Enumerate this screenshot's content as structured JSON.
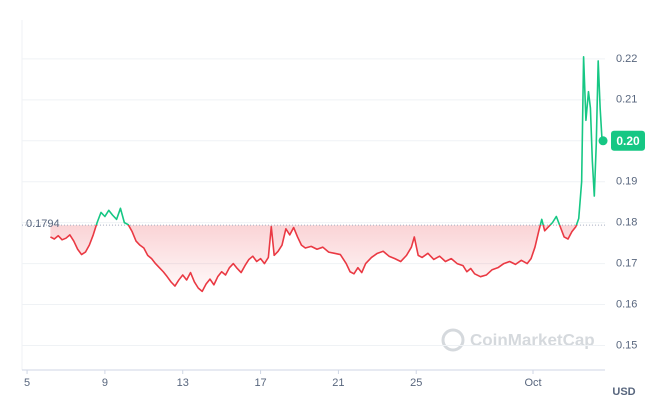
{
  "chart_data": {
    "type": "line",
    "x": [
      6.2,
      6.4,
      6.6,
      6.8,
      7.0,
      7.2,
      7.4,
      7.6,
      7.8,
      8.0,
      8.2,
      8.4,
      8.6,
      8.8,
      9.0,
      9.2,
      9.4,
      9.6,
      9.8,
      10.0,
      10.2,
      10.4,
      10.6,
      10.8,
      11.0,
      11.2,
      11.4,
      11.6,
      11.8,
      12.0,
      12.2,
      12.4,
      12.6,
      12.8,
      13.0,
      13.2,
      13.4,
      13.6,
      13.8,
      14.0,
      14.2,
      14.4,
      14.6,
      14.8,
      15.0,
      15.2,
      15.4,
      15.6,
      15.8,
      16.0,
      16.2,
      16.4,
      16.6,
      16.8,
      17.0,
      17.2,
      17.4,
      17.55,
      17.7,
      17.9,
      18.1,
      18.3,
      18.5,
      18.7,
      18.9,
      19.1,
      19.3,
      19.6,
      19.9,
      20.2,
      20.5,
      20.8,
      21.1,
      21.4,
      21.6,
      21.8,
      22.0,
      22.2,
      22.4,
      22.7,
      23.0,
      23.3,
      23.6,
      23.9,
      24.2,
      24.5,
      24.75,
      24.9,
      25.1,
      25.3,
      25.6,
      25.9,
      26.2,
      26.5,
      26.8,
      27.1,
      27.4,
      27.6,
      27.8,
      28.0,
      28.3,
      28.6,
      28.9,
      29.2,
      29.5,
      29.8,
      30.1,
      30.4,
      30.7,
      30.9,
      31.1,
      31.3,
      31.45,
      31.6,
      31.8,
      32.0,
      32.2,
      32.4,
      32.6,
      32.8,
      33.0,
      33.2,
      33.35,
      33.5,
      33.6,
      33.72,
      33.85,
      33.95,
      34.05,
      34.15,
      34.25,
      34.35,
      34.45,
      34.55,
      34.6
    ],
    "values": [
      0.1765,
      0.176,
      0.1768,
      0.1758,
      0.1762,
      0.177,
      0.1755,
      0.1735,
      0.1722,
      0.1728,
      0.1745,
      0.177,
      0.18,
      0.1825,
      0.1815,
      0.183,
      0.1818,
      0.1808,
      0.1835,
      0.18,
      0.1795,
      0.1778,
      0.1755,
      0.1745,
      0.1738,
      0.172,
      0.1712,
      0.17,
      0.169,
      0.168,
      0.1668,
      0.1655,
      0.1645,
      0.166,
      0.1672,
      0.166,
      0.1678,
      0.1655,
      0.164,
      0.1632,
      0.165,
      0.1662,
      0.1648,
      0.1668,
      0.168,
      0.1672,
      0.169,
      0.17,
      0.1688,
      0.1678,
      0.1695,
      0.171,
      0.1718,
      0.1705,
      0.1712,
      0.17,
      0.1715,
      0.179,
      0.172,
      0.173,
      0.1745,
      0.1785,
      0.177,
      0.1788,
      0.1765,
      0.1745,
      0.1738,
      0.1742,
      0.1735,
      0.174,
      0.1728,
      0.1725,
      0.1722,
      0.17,
      0.168,
      0.1675,
      0.169,
      0.1678,
      0.17,
      0.1715,
      0.1725,
      0.173,
      0.1718,
      0.1712,
      0.1705,
      0.172,
      0.174,
      0.1765,
      0.172,
      0.1715,
      0.1725,
      0.171,
      0.1718,
      0.1705,
      0.1712,
      0.17,
      0.1695,
      0.168,
      0.1688,
      0.1675,
      0.1668,
      0.1672,
      0.1685,
      0.169,
      0.17,
      0.1705,
      0.1698,
      0.1708,
      0.17,
      0.1712,
      0.174,
      0.178,
      0.1808,
      0.178,
      0.179,
      0.18,
      0.1815,
      0.179,
      0.1765,
      0.176,
      0.1778,
      0.179,
      0.181,
      0.19,
      0.2205,
      0.205,
      0.212,
      0.208,
      0.195,
      0.1865,
      0.199,
      0.2195,
      0.208,
      0.2,
      0.2
    ],
    "xlim": [
      4.74,
      34.7
    ],
    "xticks": [
      5,
      9,
      13,
      17,
      21,
      25,
      {
        "value": 31,
        "label": "Oct"
      }
    ],
    "ylim": [
      0.144,
      0.2295
    ],
    "yticks": [
      0.15,
      0.16,
      0.17,
      0.18,
      0.19,
      0.2,
      0.21,
      0.22
    ],
    "baseline": 0.1794,
    "last_price": {
      "value": 0.2,
      "label": "0.20"
    },
    "currency": "USD",
    "watermark": "CoinMarketCap",
    "up_color": "#16c784",
    "down_color": "#ea3943",
    "grid": true
  }
}
